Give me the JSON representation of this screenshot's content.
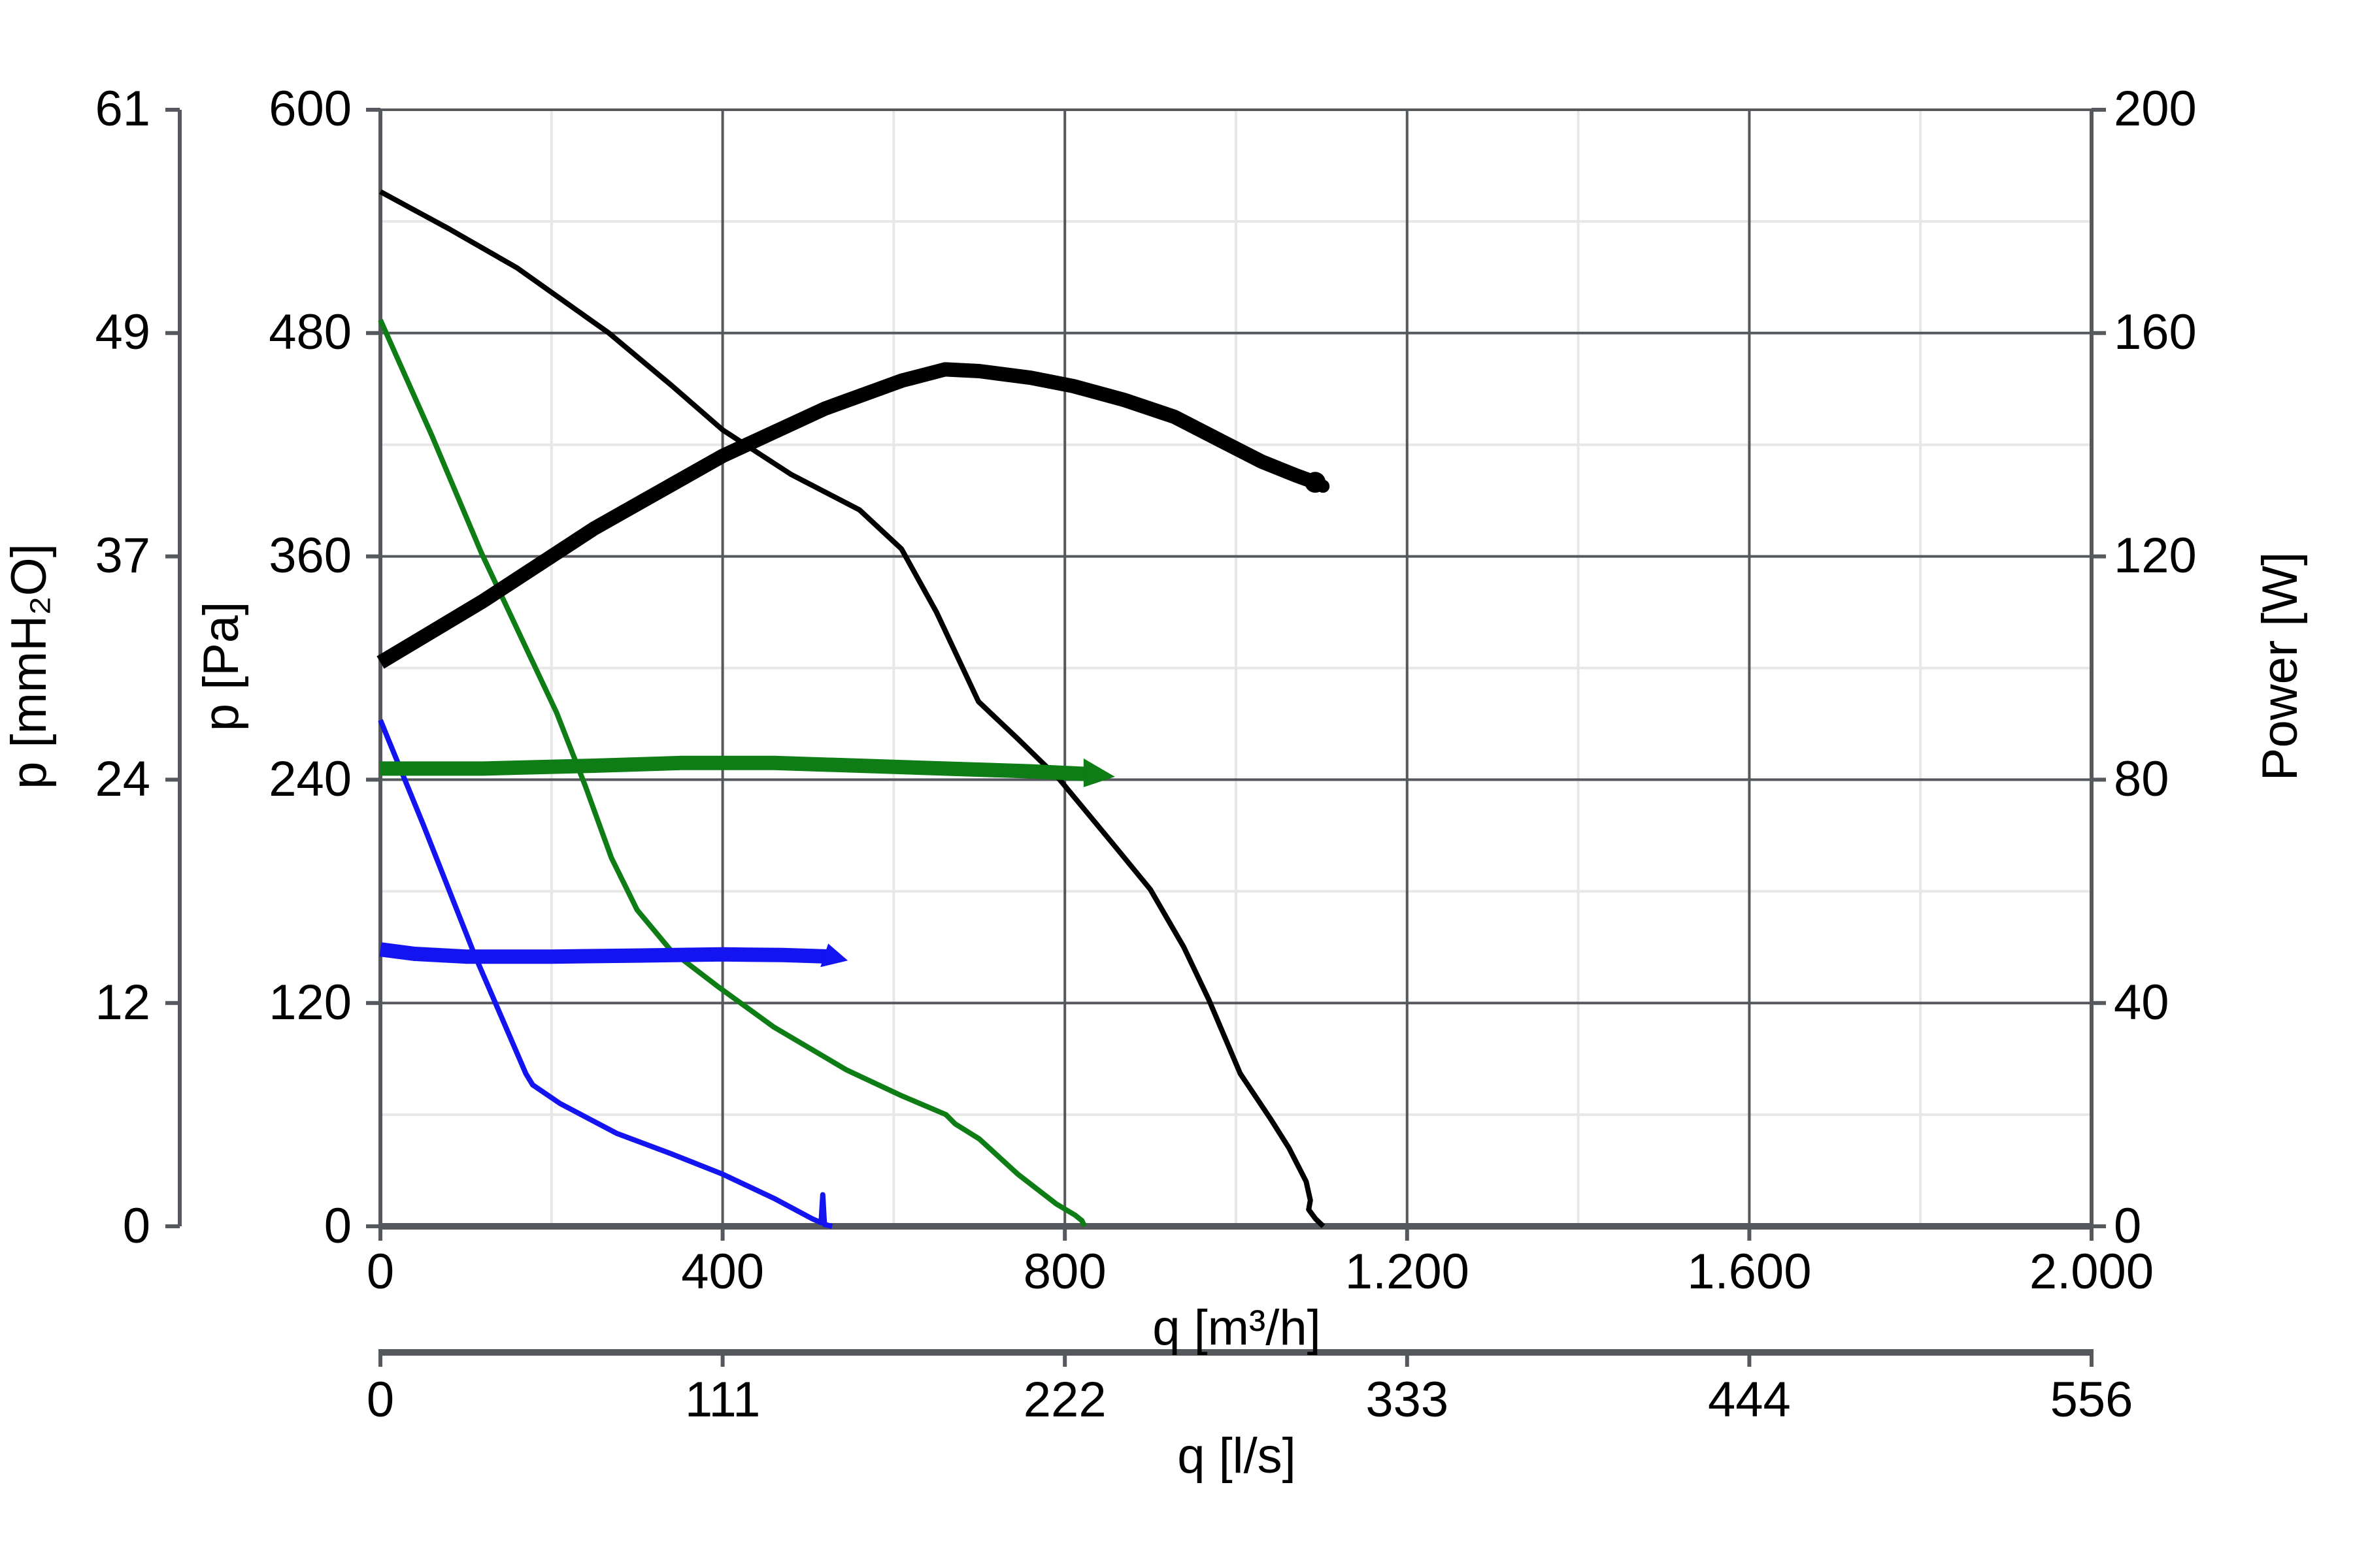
{
  "chart_data": {
    "type": "line",
    "title": "",
    "x_axis": {
      "label": "q [m³/h]",
      "tick_labels": [
        "0",
        "400",
        "800",
        "1.200",
        "1.600",
        "2.000"
      ],
      "tick_values": [
        0,
        400,
        800,
        1200,
        1600,
        2000
      ],
      "range": [
        0,
        2000
      ],
      "minor_step": 200
    },
    "x_axis_secondary": {
      "label": "q [l/s]",
      "tick_labels": [
        "0",
        "111",
        "222",
        "333",
        "444",
        "556"
      ],
      "tick_values": [
        0,
        400,
        800,
        1200,
        1600,
        2000
      ]
    },
    "y_axis_left_outer": {
      "label": "p [mmH₂O]",
      "tick_labels": [
        "0",
        "12",
        "24",
        "37",
        "49",
        "61"
      ],
      "tick_values": [
        0,
        120,
        240,
        360,
        480,
        600
      ]
    },
    "y_axis_left": {
      "label": "p [Pa]",
      "tick_labels": [
        "0",
        "120",
        "240",
        "360",
        "480",
        "600"
      ],
      "tick_values": [
        0,
        120,
        240,
        360,
        480,
        600
      ],
      "range": [
        0,
        600
      ],
      "minor_step": 60
    },
    "y_axis_right": {
      "label": "Power [W]",
      "tick_labels": [
        "0",
        "40",
        "80",
        "120",
        "160",
        "200"
      ],
      "tick_values": [
        0,
        40,
        80,
        120,
        160,
        200
      ],
      "range": [
        0,
        200
      ]
    },
    "grid": {
      "major_color": "#55585c",
      "minor_color": "#e7e7e7",
      "axis_color": "#55585c",
      "grid_on": true
    },
    "colors": {
      "black_curve": "#000000",
      "green_curve": "#0f7d16",
      "blue_curve": "#1414f0"
    },
    "series": [
      {
        "name": "pressure-curve-high-speed",
        "unit": "Pa",
        "axis": "pa",
        "color": "#000000",
        "width": 4,
        "points": [
          [
            0,
            556
          ],
          [
            80,
            536
          ],
          [
            160,
            515
          ],
          [
            267,
            480
          ],
          [
            340,
            452
          ],
          [
            400,
            428
          ],
          [
            480,
            404
          ],
          [
            560,
            385
          ],
          [
            609,
            364
          ],
          [
            650,
            330
          ],
          [
            699,
            282
          ],
          [
            745,
            262
          ],
          [
            794,
            240
          ],
          [
            859,
            204
          ],
          [
            900,
            181
          ],
          [
            939,
            150
          ],
          [
            968,
            122
          ],
          [
            1005,
            82
          ],
          [
            1040,
            58
          ],
          [
            1062,
            42
          ],
          [
            1082,
            24
          ],
          [
            1087,
            14
          ],
          [
            1085,
            9
          ],
          [
            1093,
            4
          ],
          [
            1102,
            0
          ]
        ],
        "end_marker": "none"
      },
      {
        "name": "power-curve-high-speed",
        "unit": "W",
        "axis": "power",
        "color": "#000000",
        "width": 11,
        "points": [
          [
            0,
            101
          ],
          [
            120,
            112
          ],
          [
            250,
            125
          ],
          [
            400,
            138
          ],
          [
            520,
            146.5
          ],
          [
            610,
            151.5
          ],
          [
            660,
            153.5
          ],
          [
            700,
            153.2
          ],
          [
            760,
            152
          ],
          [
            810,
            150.5
          ],
          [
            870,
            148
          ],
          [
            928,
            145
          ],
          [
            985,
            140.5
          ],
          [
            1030,
            137
          ],
          [
            1070,
            134.5
          ],
          [
            1088,
            133.5
          ]
        ],
        "end_marker": "blob"
      },
      {
        "name": "pressure-curve-mid-speed",
        "unit": "Pa",
        "axis": "pa",
        "color": "#0f7d16",
        "width": 4,
        "points": [
          [
            0,
            487
          ],
          [
            60,
            425
          ],
          [
            118,
            362
          ],
          [
            170,
            311
          ],
          [
            206,
            276
          ],
          [
            240,
            236
          ],
          [
            270,
            198
          ],
          [
            300,
            170
          ],
          [
            340,
            148
          ],
          [
            397,
            128
          ],
          [
            460,
            107
          ],
          [
            545,
            84
          ],
          [
            610,
            70
          ],
          [
            661,
            60
          ],
          [
            672,
            55
          ],
          [
            700,
            47
          ],
          [
            745,
            28
          ],
          [
            790,
            12
          ],
          [
            812,
            6
          ],
          [
            820,
            3
          ],
          [
            823,
            0
          ]
        ],
        "end_marker": "none"
      },
      {
        "name": "power-curve-mid-speed",
        "unit": "W",
        "axis": "power",
        "color": "#0f7d16",
        "width": 11,
        "points": [
          [
            0,
            82
          ],
          [
            120,
            82
          ],
          [
            250,
            82.5
          ],
          [
            352,
            83
          ],
          [
            460,
            83
          ],
          [
            560,
            82.5
          ],
          [
            660,
            82
          ],
          [
            760,
            81.5
          ],
          [
            828,
            81
          ]
        ],
        "end_marker": "arrow-right"
      },
      {
        "name": "pressure-curve-low-speed",
        "unit": "Pa",
        "axis": "pa",
        "color": "#1414f0",
        "width": 4,
        "points": [
          [
            0,
            272
          ],
          [
            50,
            216
          ],
          [
            110,
            146
          ],
          [
            142,
            112
          ],
          [
            170,
            82
          ],
          [
            178,
            76
          ],
          [
            210,
            66
          ],
          [
            276,
            50
          ],
          [
            340,
            39
          ],
          [
            400,
            28
          ],
          [
            460,
            15
          ],
          [
            505,
            4
          ],
          [
            515,
            2
          ],
          [
            517,
            17
          ],
          [
            519,
            1
          ],
          [
            528,
            0
          ]
        ],
        "end_marker": "none"
      },
      {
        "name": "power-curve-low-speed",
        "unit": "W",
        "axis": "power",
        "color": "#1414f0",
        "width": 11,
        "points": [
          [
            0,
            49.6
          ],
          [
            40,
            48.8
          ],
          [
            100,
            48.3
          ],
          [
            200,
            48.3
          ],
          [
            300,
            48.5
          ],
          [
            400,
            48.7
          ],
          [
            470,
            48.6
          ],
          [
            528,
            48.3
          ]
        ],
        "end_marker": "arrow-down"
      }
    ],
    "layout": {
      "plot_left": 291,
      "plot_right": 1600,
      "plot_top": 84,
      "plot_bottom": 938.5,
      "mmh2o_axis_x": 137.5,
      "secondary_axis_y": 1035,
      "tick_len": 11
    }
  }
}
